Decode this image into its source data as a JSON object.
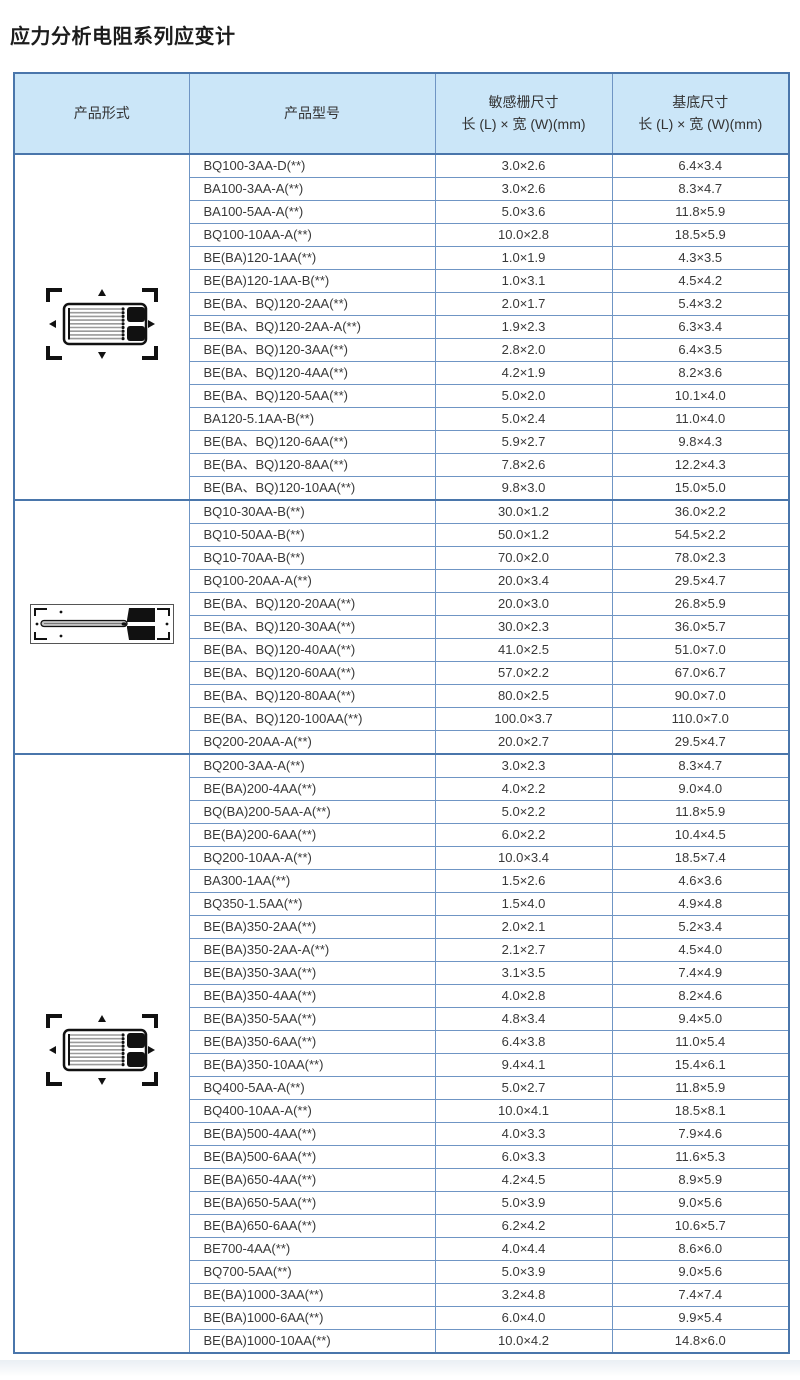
{
  "page": {
    "title": "应力分析电阻系列应变计"
  },
  "colors": {
    "border_dark": "#4a76ab",
    "border_light": "#6f95c4",
    "header_bg": "#cbe6f8",
    "text": "#383838"
  },
  "table": {
    "headers": {
      "form": "产品形式",
      "model": "产品型号",
      "grid_size": {
        "line1": "敏感栅尺寸",
        "line2": "长 (L) × 宽 (W)(mm)"
      },
      "base_size": {
        "line1": "基底尺寸",
        "line2": "长 (L) × 宽 (W)(mm)"
      }
    },
    "groups": [
      {
        "form_image": "gauge-compact",
        "rows": [
          {
            "model": "BQ100-3AA-D(**)",
            "grid": "3.0×2.6",
            "base": "6.4×3.4"
          },
          {
            "model": "BA100-3AA-A(**)",
            "grid": "3.0×2.6",
            "base": "8.3×4.7"
          },
          {
            "model": "BA100-5AA-A(**)",
            "grid": "5.0×3.6",
            "base": "11.8×5.9"
          },
          {
            "model": "BQ100-10AA-A(**)",
            "grid": "10.0×2.8",
            "base": "18.5×5.9"
          },
          {
            "model": "BE(BA)120-1AA(**)",
            "grid": "1.0×1.9",
            "base": "4.3×3.5"
          },
          {
            "model": "BE(BA)120-1AA-B(**)",
            "grid": "1.0×3.1",
            "base": "4.5×4.2"
          },
          {
            "model": "BE(BA、BQ)120-2AA(**)",
            "grid": "2.0×1.7",
            "base": "5.4×3.2"
          },
          {
            "model": "BE(BA、BQ)120-2AA-A(**)",
            "grid": "1.9×2.3",
            "base": "6.3×3.4"
          },
          {
            "model": "BE(BA、BQ)120-3AA(**)",
            "grid": "2.8×2.0",
            "base": "6.4×3.5"
          },
          {
            "model": "BE(BA、BQ)120-4AA(**)",
            "grid": "4.2×1.9",
            "base": "8.2×3.6"
          },
          {
            "model": "BE(BA、BQ)120-5AA(**)",
            "grid": "5.0×2.0",
            "base": "10.1×4.0"
          },
          {
            "model": "BA120-5.1AA-B(**)",
            "grid": "5.0×2.4",
            "base": "11.0×4.0"
          },
          {
            "model": "BE(BA、BQ)120-6AA(**)",
            "grid": "5.9×2.7",
            "base": "9.8×4.3"
          },
          {
            "model": "BE(BA、BQ)120-8AA(**)",
            "grid": "7.8×2.6",
            "base": "12.2×4.3"
          },
          {
            "model": "BE(BA、BQ)120-10AA(**)",
            "grid": "9.8×3.0",
            "base": "15.0×5.0"
          }
        ]
      },
      {
        "form_image": "gauge-long",
        "rows": [
          {
            "model": "BQ10-30AA-B(**)",
            "grid": "30.0×1.2",
            "base": "36.0×2.2"
          },
          {
            "model": "BQ10-50AA-B(**)",
            "grid": "50.0×1.2",
            "base": "54.5×2.2"
          },
          {
            "model": "BQ10-70AA-B(**)",
            "grid": "70.0×2.0",
            "base": "78.0×2.3"
          },
          {
            "model": "BQ100-20AA-A(**)",
            "grid": "20.0×3.4",
            "base": "29.5×4.7"
          },
          {
            "model": "BE(BA、BQ)120-20AA(**)",
            "grid": "20.0×3.0",
            "base": "26.8×5.9"
          },
          {
            "model": "BE(BA、BQ)120-30AA(**)",
            "grid": "30.0×2.3",
            "base": "36.0×5.7"
          },
          {
            "model": "BE(BA、BQ)120-40AA(**)",
            "grid": "41.0×2.5",
            "base": "51.0×7.0"
          },
          {
            "model": "BE(BA、BQ)120-60AA(**)",
            "grid": "57.0×2.2",
            "base": "67.0×6.7"
          },
          {
            "model": "BE(BA、BQ)120-80AA(**)",
            "grid": "80.0×2.5",
            "base": "90.0×7.0"
          },
          {
            "model": "BE(BA、BQ)120-100AA(**)",
            "grid": "100.0×3.7",
            "base": "110.0×7.0"
          },
          {
            "model": "BQ200-20AA-A(**)",
            "grid": "20.0×2.7",
            "base": "29.5×4.7"
          }
        ]
      },
      {
        "form_image": "gauge-compact",
        "rows": [
          {
            "model": "BQ200-3AA-A(**)",
            "grid": "3.0×2.3",
            "base": "8.3×4.7"
          },
          {
            "model": "BE(BA)200-4AA(**)",
            "grid": "4.0×2.2",
            "base": "9.0×4.0"
          },
          {
            "model": "BQ(BA)200-5AA-A(**)",
            "grid": "5.0×2.2",
            "base": "11.8×5.9"
          },
          {
            "model": "BE(BA)200-6AA(**)",
            "grid": "6.0×2.2",
            "base": "10.4×4.5"
          },
          {
            "model": "BQ200-10AA-A(**)",
            "grid": "10.0×3.4",
            "base": "18.5×7.4"
          },
          {
            "model": "BA300-1AA(**)",
            "grid": "1.5×2.6",
            "base": "4.6×3.6"
          },
          {
            "model": "BQ350-1.5AA(**)",
            "grid": "1.5×4.0",
            "base": "4.9×4.8"
          },
          {
            "model": "BE(BA)350-2AA(**)",
            "grid": "2.0×2.1",
            "base": "5.2×3.4"
          },
          {
            "model": "BE(BA)350-2AA-A(**)",
            "grid": "2.1×2.7",
            "base": "4.5×4.0"
          },
          {
            "model": "BE(BA)350-3AA(**)",
            "grid": "3.1×3.5",
            "base": "7.4×4.9"
          },
          {
            "model": "BE(BA)350-4AA(**)",
            "grid": "4.0×2.8",
            "base": "8.2×4.6"
          },
          {
            "model": "BE(BA)350-5AA(**)",
            "grid": "4.8×3.4",
            "base": "9.4×5.0"
          },
          {
            "model": "BE(BA)350-6AA(**)",
            "grid": "6.4×3.8",
            "base": "11.0×5.4"
          },
          {
            "model": "BE(BA)350-10AA(**)",
            "grid": "9.4×4.1",
            "base": "15.4×6.1"
          },
          {
            "model": "BQ400-5AA-A(**)",
            "grid": "5.0×2.7",
            "base": "11.8×5.9"
          },
          {
            "model": "BQ400-10AA-A(**)",
            "grid": "10.0×4.1",
            "base": "18.5×8.1"
          },
          {
            "model": "BE(BA)500-4AA(**)",
            "grid": "4.0×3.3",
            "base": "7.9×4.6"
          },
          {
            "model": "BE(BA)500-6AA(**)",
            "grid": "6.0×3.3",
            "base": "11.6×5.3"
          },
          {
            "model": "BE(BA)650-4AA(**)",
            "grid": "4.2×4.5",
            "base": "8.9×5.9"
          },
          {
            "model": "BE(BA)650-5AA(**)",
            "grid": "5.0×3.9",
            "base": "9.0×5.6"
          },
          {
            "model": "BE(BA)650-6AA(**)",
            "grid": "6.2×4.2",
            "base": "10.6×5.7"
          },
          {
            "model": "BE700-4AA(**)",
            "grid": "4.0×4.4",
            "base": "8.6×6.0"
          },
          {
            "model": "BQ700-5AA(**)",
            "grid": "5.0×3.9",
            "base": "9.0×5.6"
          },
          {
            "model": "BE(BA)1000-3AA(**)",
            "grid": "3.2×4.8",
            "base": "7.4×7.4"
          },
          {
            "model": "BE(BA)1000-6AA(**)",
            "grid": "6.0×4.0",
            "base": "9.9×5.4"
          },
          {
            "model": "BE(BA)1000-10AA(**)",
            "grid": "10.0×4.2",
            "base": "14.8×6.0"
          }
        ]
      }
    ]
  }
}
